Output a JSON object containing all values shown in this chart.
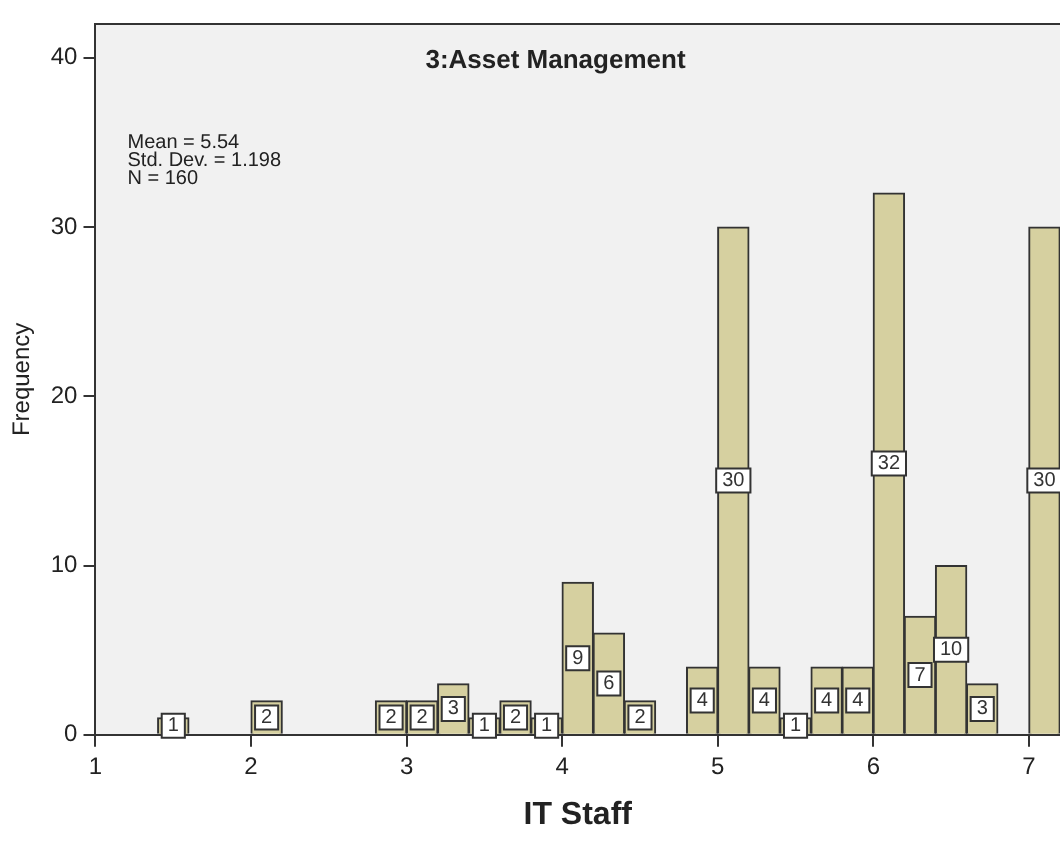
{
  "chart_data": {
    "type": "histogram",
    "title": "3:Asset Management",
    "xlabel": "IT Staff",
    "ylabel": "Frequency",
    "annotations": [
      "Mean = 5.54",
      "Std. Dev. = 1.198",
      "N = 160"
    ],
    "bins": [
      1.0,
      1.2,
      1.4,
      1.6,
      1.8,
      2.0,
      2.2,
      2.4,
      2.6,
      2.8,
      3.0,
      3.2,
      3.4,
      3.6,
      3.8,
      4.0,
      4.2,
      4.4,
      4.6,
      4.8,
      5.0,
      5.2,
      5.4,
      5.6,
      5.8,
      6.0,
      6.2,
      6.4,
      6.6,
      6.8,
      7.0,
      7.2
    ],
    "values": [
      0,
      0,
      1,
      0,
      0,
      2,
      0,
      0,
      0,
      2,
      2,
      3,
      1,
      2,
      1,
      9,
      6,
      2,
      0,
      4,
      30,
      4,
      1,
      4,
      4,
      32,
      7,
      10,
      3,
      0,
      30
    ],
    "value_labels": [
      null,
      null,
      "1",
      null,
      null,
      "2",
      null,
      null,
      null,
      "2",
      "2",
      "3",
      "1",
      "2",
      "1",
      "9",
      "6",
      "2",
      null,
      "4",
      "30",
      "4",
      "1",
      "4",
      "4",
      "32",
      "7",
      "10",
      "3",
      null,
      "30"
    ],
    "color": "#d6d0a0",
    "xlim": [
      1,
      7.2
    ],
    "xticks": [
      1,
      2,
      3,
      4,
      5,
      6,
      7
    ],
    "ylim": [
      0,
      42
    ],
    "yticks": [
      0,
      10,
      20,
      30,
      40
    ],
    "grid": false,
    "legend": false
  }
}
